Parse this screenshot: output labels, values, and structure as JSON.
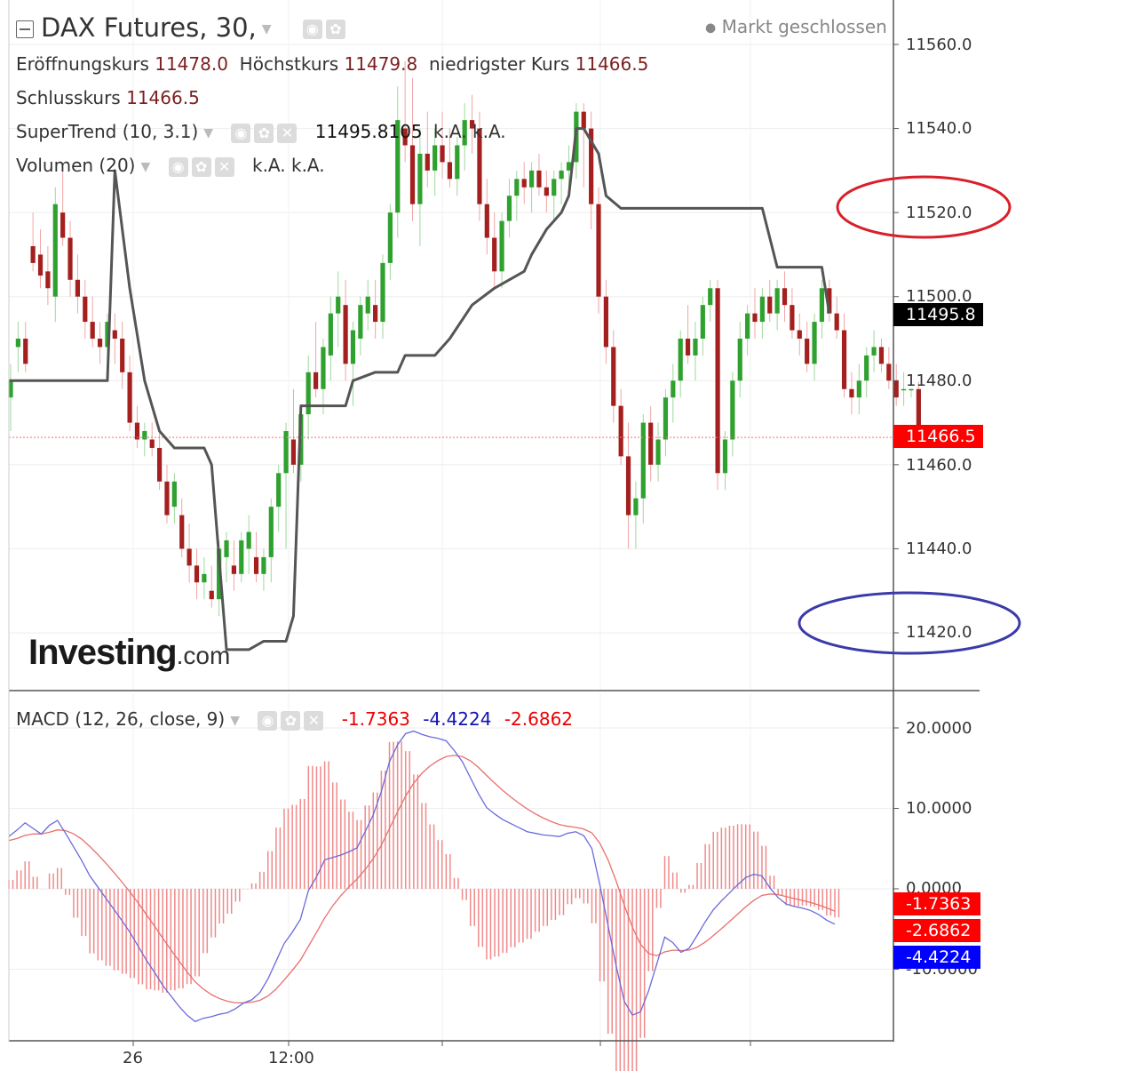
{
  "header": {
    "symbol_title": "DAX Futures, 30,",
    "market_status": "Markt geschlossen"
  },
  "ohlc": {
    "open_label": "Eröffnungskurs",
    "open_value": "11478.0",
    "high_label": "Höchstkurs",
    "high_value": "11479.8",
    "low_label": "niedrigster Kurs",
    "low_value": "11466.5",
    "close_label": "Schlusskurs",
    "close_value": "11466.5"
  },
  "indicators": {
    "supertrend_label": "SuperTrend (10, 3.1)",
    "supertrend_value": "11495.8105",
    "supertrend_na1": "k.A.",
    "supertrend_na2": "k.A.",
    "volume_label": "Volumen (20)",
    "volume_na1": "k.A.",
    "volume_na2": "k.A.",
    "macd_label": "MACD (12, 26, close, 9)",
    "macd_hist_value": "-1.7363",
    "macd_line_value": "-4.4224",
    "macd_signal_value": "-2.6862"
  },
  "price_axis": {
    "ticks": [
      "11560.0",
      "11540.0",
      "11520.0",
      "11500.0",
      "11480.0",
      "11460.0",
      "11440.0",
      "11420.0"
    ],
    "supertrend_tag": "11495.8",
    "last_price_tag": "11466.5"
  },
  "macd_axis": {
    "ticks": [
      "20.0000",
      "10.0000",
      "0.0000",
      "-10.0000"
    ],
    "tag_hist": "-1.7363",
    "tag_signal": "-2.6862",
    "tag_macd": "-4.4224"
  },
  "time_axis": {
    "ticks": [
      "26",
      "12:00"
    ]
  },
  "logo": {
    "main": "Investing",
    "suffix": ".com"
  },
  "colors": {
    "up": "#2ea12e",
    "down": "#a3201f",
    "supertrend": "#555555",
    "macd_line": "#6a6adc",
    "signal_line": "#e8706e",
    "hist": "#f08a8a",
    "tag_red": "#ff0000",
    "tag_blue": "#0000ff",
    "tag_black": "#000000",
    "annotation_red": "#d9202a",
    "annotation_blue": "#3a3aaa"
  },
  "chart_data": [
    {
      "type": "candlestick",
      "title": "DAX Futures, 30",
      "ylim": [
        11408,
        11572
      ],
      "candles": [
        [
          11476,
          11484,
          11468,
          11480
        ],
        [
          11488,
          11494,
          11482,
          11490
        ],
        [
          11490,
          11494,
          11482,
          11484
        ],
        [
          11512,
          11520,
          11506,
          11508
        ],
        [
          11510,
          11516,
          11502,
          11505
        ],
        [
          11506,
          11512,
          11498,
          11502
        ],
        [
          11500,
          11526,
          11494,
          11522
        ],
        [
          11520,
          11530,
          11512,
          11514
        ],
        [
          11514,
          11518,
          11500,
          11504
        ],
        [
          11504,
          11510,
          11496,
          11500
        ],
        [
          11500,
          11504,
          11490,
          11494
        ],
        [
          11494,
          11500,
          11488,
          11490
        ],
        [
          11490,
          11494,
          11484,
          11488
        ],
        [
          11488,
          11496,
          11484,
          11494
        ],
        [
          11492,
          11496,
          11484,
          11490
        ],
        [
          11490,
          11494,
          11478,
          11482
        ],
        [
          11482,
          11486,
          11468,
          11470
        ],
        [
          11470,
          11474,
          11464,
          11466
        ],
        [
          11466,
          11470,
          11462,
          11468
        ],
        [
          11466,
          11470,
          11462,
          11464
        ],
        [
          11464,
          11468,
          11454,
          11456
        ],
        [
          11456,
          11460,
          11446,
          11448
        ],
        [
          11450,
          11458,
          11446,
          11456
        ],
        [
          11448,
          11452,
          11438,
          11440
        ],
        [
          11440,
          11446,
          11432,
          11436
        ],
        [
          11436,
          11440,
          11428,
          11432
        ],
        [
          11432,
          11438,
          11428,
          11434
        ],
        [
          11430,
          11436,
          11426,
          11428
        ],
        [
          11428,
          11442,
          11424,
          11440
        ],
        [
          11438,
          11444,
          11432,
          11442
        ],
        [
          11436,
          11442,
          11430,
          11434
        ],
        [
          11434,
          11444,
          11432,
          11442
        ],
        [
          11440,
          11448,
          11434,
          11444
        ],
        [
          11438,
          11444,
          11432,
          11434
        ],
        [
          11434,
          11440,
          11430,
          11438
        ],
        [
          11438,
          11452,
          11432,
          11450
        ],
        [
          11450,
          11460,
          11444,
          11458
        ],
        [
          11458,
          11470,
          11440,
          11468
        ],
        [
          11466,
          11478,
          11458,
          11460
        ],
        [
          11460,
          11474,
          11456,
          11472
        ],
        [
          11472,
          11486,
          11466,
          11482
        ],
        [
          11482,
          11494,
          11476,
          11478
        ],
        [
          11478,
          11490,
          11472,
          11488
        ],
        [
          11486,
          11500,
          11480,
          11496
        ],
        [
          11496,
          11506,
          11488,
          11500
        ],
        [
          11498,
          11504,
          11480,
          11484
        ],
        [
          11484,
          11494,
          11474,
          11492
        ],
        [
          11490,
          11500,
          11486,
          11498
        ],
        [
          11496,
          11504,
          11492,
          11500
        ],
        [
          11498,
          11504,
          11490,
          11494
        ],
        [
          11494,
          11510,
          11490,
          11508
        ],
        [
          11508,
          11522,
          11504,
          11520
        ],
        [
          11520,
          11550,
          11514,
          11542
        ],
        [
          11540,
          11556,
          11532,
          11536
        ],
        [
          11536,
          11552,
          11518,
          11522
        ],
        [
          11522,
          11540,
          11512,
          11534
        ],
        [
          11534,
          11544,
          11526,
          11530
        ],
        [
          11530,
          11540,
          11524,
          11536
        ],
        [
          11536,
          11544,
          11528,
          11532
        ],
        [
          11532,
          11540,
          11526,
          11528
        ],
        [
          11528,
          11538,
          11524,
          11536
        ],
        [
          11536,
          11546,
          11530,
          11542
        ],
        [
          11542,
          11548,
          11534,
          11540
        ],
        [
          11540,
          11544,
          11518,
          11522
        ],
        [
          11522,
          11528,
          11510,
          11514
        ],
        [
          11514,
          11520,
          11502,
          11506
        ],
        [
          11506,
          11520,
          11502,
          11518
        ],
        [
          11518,
          11528,
          11514,
          11524
        ],
        [
          11524,
          11530,
          11518,
          11528
        ],
        [
          11528,
          11532,
          11522,
          11526
        ],
        [
          11526,
          11532,
          11520,
          11530
        ],
        [
          11530,
          11534,
          11524,
          11526
        ],
        [
          11526,
          11530,
          11520,
          11524
        ],
        [
          11524,
          11530,
          11518,
          11528
        ],
        [
          11528,
          11532,
          11522,
          11530
        ],
        [
          11530,
          11536,
          11526,
          11532
        ],
        [
          11532,
          11546,
          11528,
          11544
        ],
        [
          11544,
          11546,
          11526,
          11540
        ],
        [
          11540,
          11544,
          11516,
          11522
        ],
        [
          11522,
          11526,
          11496,
          11500
        ],
        [
          11500,
          11504,
          11484,
          11488
        ],
        [
          11488,
          11492,
          11470,
          11474
        ],
        [
          11474,
          11478,
          11460,
          11462
        ],
        [
          11462,
          11470,
          11440,
          11448
        ],
        [
          11448,
          11456,
          11440,
          11452
        ],
        [
          11452,
          11472,
          11446,
          11470
        ],
        [
          11470,
          11474,
          11456,
          11460
        ],
        [
          11460,
          11470,
          11456,
          11466
        ],
        [
          11466,
          11478,
          11462,
          11476
        ],
        [
          11476,
          11484,
          11470,
          11480
        ],
        [
          11480,
          11492,
          11476,
          11490
        ],
        [
          11490,
          11498,
          11484,
          11486
        ],
        [
          11486,
          11494,
          11480,
          11490
        ],
        [
          11490,
          11500,
          11486,
          11498
        ],
        [
          11498,
          11504,
          11494,
          11502
        ],
        [
          11502,
          11504,
          11454,
          11458
        ],
        [
          11458,
          11468,
          11454,
          11466
        ],
        [
          11466,
          11482,
          11462,
          11480
        ],
        [
          11480,
          11494,
          11476,
          11490
        ],
        [
          11490,
          11498,
          11486,
          11496
        ],
        [
          11496,
          11502,
          11490,
          11494
        ],
        [
          11494,
          11502,
          11490,
          11500
        ],
        [
          11500,
          11504,
          11494,
          11496
        ],
        [
          11496,
          11504,
          11492,
          11502
        ],
        [
          11502,
          11506,
          11494,
          11498
        ],
        [
          11498,
          11502,
          11490,
          11492
        ],
        [
          11492,
          11496,
          11486,
          11490
        ],
        [
          11490,
          11494,
          11482,
          11484
        ],
        [
          11484,
          11496,
          11480,
          11494
        ],
        [
          11494,
          11504,
          11490,
          11502
        ],
        [
          11502,
          11504,
          11494,
          11496
        ],
        [
          11496,
          11500,
          11490,
          11492
        ],
        [
          11492,
          11496,
          11476,
          11478
        ],
        [
          11478,
          11482,
          11472,
          11476
        ],
        [
          11476,
          11484,
          11472,
          11480
        ],
        [
          11480,
          11488,
          11476,
          11486
        ],
        [
          11486,
          11492,
          11482,
          11488
        ],
        [
          11488,
          11490,
          11482,
          11484
        ],
        [
          11484,
          11488,
          11478,
          11480
        ],
        [
          11480,
          11484,
          11474,
          11476
        ],
        [
          11478,
          11482,
          11474,
          11478
        ],
        [
          11478,
          11478,
          11476,
          11478
        ],
        [
          11478,
          11479.8,
          11466.5,
          11466.5
        ]
      ],
      "supertrend": [
        [
          0,
          11480
        ],
        [
          13,
          11480
        ],
        [
          14,
          11530
        ],
        [
          16,
          11502
        ],
        [
          18,
          11480
        ],
        [
          20,
          11468
        ],
        [
          22,
          11464
        ],
        [
          24,
          11464
        ],
        [
          26,
          11464
        ],
        [
          27,
          11460
        ],
        [
          29,
          11416
        ],
        [
          32,
          11416
        ],
        [
          34,
          11418
        ],
        [
          37,
          11418
        ],
        [
          38,
          11424
        ],
        [
          39,
          11474
        ],
        [
          41,
          11474
        ],
        [
          45,
          11474
        ],
        [
          46,
          11480
        ],
        [
          49,
          11482
        ],
        [
          52,
          11482
        ],
        [
          53,
          11486
        ],
        [
          55,
          11486
        ],
        [
          57,
          11486
        ],
        [
          59,
          11490
        ],
        [
          62,
          11498
        ],
        [
          65,
          11502
        ],
        [
          69,
          11506
        ],
        [
          70,
          11510
        ],
        [
          72,
          11516
        ],
        [
          74,
          11520
        ],
        [
          75,
          11524
        ],
        [
          76,
          11540
        ],
        [
          77,
          11540
        ],
        [
          79,
          11534
        ],
        [
          80,
          11524
        ],
        [
          82,
          11521
        ],
        [
          98,
          11521
        ],
        [
          101,
          11521
        ],
        [
          103,
          11507
        ],
        [
          109,
          11507
        ],
        [
          110,
          11496
        ]
      ]
    },
    {
      "type": "macd",
      "title": "MACD (12, 26, close, 9)",
      "ylim": [
        -18,
        22
      ],
      "macd": [
        6.5,
        7.3,
        8.2,
        7.5,
        6.8,
        7.9,
        8.5,
        6.9,
        5.2,
        3.5,
        1.6,
        0.2,
        -1.2,
        -2.6,
        -4,
        -5.5,
        -7.2,
        -8.9,
        -10.4,
        -12,
        -13.3,
        -14.6,
        -15.7,
        -16.5,
        -16.1,
        -15.9,
        -15.6,
        -15.4,
        -14.9,
        -14.2,
        -13.8,
        -12.9,
        -11.2,
        -9,
        -6.8,
        -5.4,
        -3.8,
        -0.2,
        1.5,
        3.6,
        3.9,
        4.2,
        4.6,
        5.1,
        7.1,
        9.2,
        12.1,
        15.8,
        17.9,
        19.3,
        19.6,
        19.2,
        18.9,
        18.7,
        18.4,
        17.2,
        15.8,
        13.8,
        11.8,
        10.1,
        9.3,
        8.6,
        8.1,
        7.6,
        7.1,
        6.9,
        6.7,
        6.6,
        6.5,
        6.9,
        7.1,
        6.6,
        5,
        0.4,
        -4.6,
        -9.6,
        -14,
        -15.7,
        -15.3,
        -12.7,
        -9.4,
        -6,
        -6.7,
        -7.9,
        -7.4,
        -5.8,
        -4.1,
        -2.6,
        -1.5,
        -0.5,
        0.5,
        1.4,
        1.8,
        1.6,
        0.1,
        -1.1,
        -1.9,
        -2.2,
        -2.4,
        -2.7,
        -3.2,
        -3.9,
        -4.4
      ]
    }
  ]
}
